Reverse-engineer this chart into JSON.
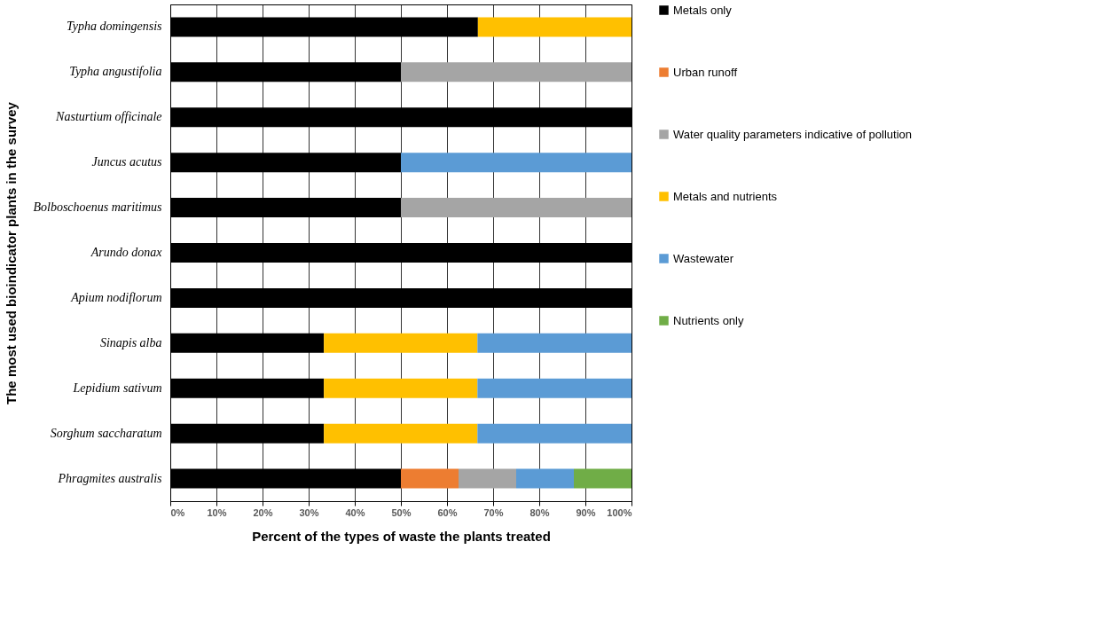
{
  "chart_data": {
    "type": "bar",
    "orientation": "horizontal",
    "stacked": true,
    "xlabel": "Percent of the types of waste the plants treated",
    "ylabel": "The most used bioindicator plants in the survey",
    "categories": [
      "Typha domingensis",
      "Typha angustifolia",
      "Nasturtium officinale",
      "Juncus acutus",
      "Bolboschoenus maritimus",
      "Arundo donax",
      "Apium nodiflorum",
      "Sinapis alba",
      "Lepidium sativum",
      "Sorghum saccharatum",
      "Phragmites australis"
    ],
    "series": [
      {
        "name": "Metals only",
        "color": "#000000",
        "values": [
          66.7,
          50,
          100,
          50,
          50,
          100,
          100,
          33.3,
          33.3,
          33.3,
          50
        ]
      },
      {
        "name": "Urban runoff",
        "color": "#ed7d31",
        "values": [
          0,
          0,
          0,
          0,
          0,
          0,
          0,
          0,
          0,
          0,
          12.5
        ]
      },
      {
        "name": "Water quality parameters indicative of pollution",
        "color": "#a5a5a5",
        "values": [
          0,
          50,
          0,
          0,
          50,
          0,
          0,
          0,
          0,
          0,
          12.5
        ]
      },
      {
        "name": "Metals and nutrients",
        "color": "#ffc000",
        "values": [
          33.3,
          0,
          0,
          0,
          0,
          0,
          0,
          33.3,
          33.3,
          33.3,
          0
        ]
      },
      {
        "name": "Wastewater",
        "color": "#5b9bd5",
        "values": [
          0,
          0,
          0,
          50,
          0,
          0,
          0,
          33.4,
          33.4,
          33.4,
          12.5
        ]
      },
      {
        "name": "Nutrients only",
        "color": "#70ad47",
        "values": [
          0,
          0,
          0,
          0,
          0,
          0,
          0,
          0,
          0,
          0,
          12.5
        ]
      }
    ],
    "xlim": [
      0,
      100
    ],
    "xticks": [
      {
        "value": 0,
        "label": "0%"
      },
      {
        "value": 10,
        "label": "10%"
      },
      {
        "value": 20,
        "label": "20%"
      },
      {
        "value": 30,
        "label": "30%"
      },
      {
        "value": 40,
        "label": "40%"
      },
      {
        "value": 50,
        "label": "50%"
      },
      {
        "value": 60,
        "label": "60%"
      },
      {
        "value": 70,
        "label": "70%"
      },
      {
        "value": 80,
        "label": "80%"
      },
      {
        "value": 90,
        "label": "90%"
      },
      {
        "value": 100,
        "label": "100%"
      }
    ],
    "grid": "x",
    "legend": "right"
  }
}
